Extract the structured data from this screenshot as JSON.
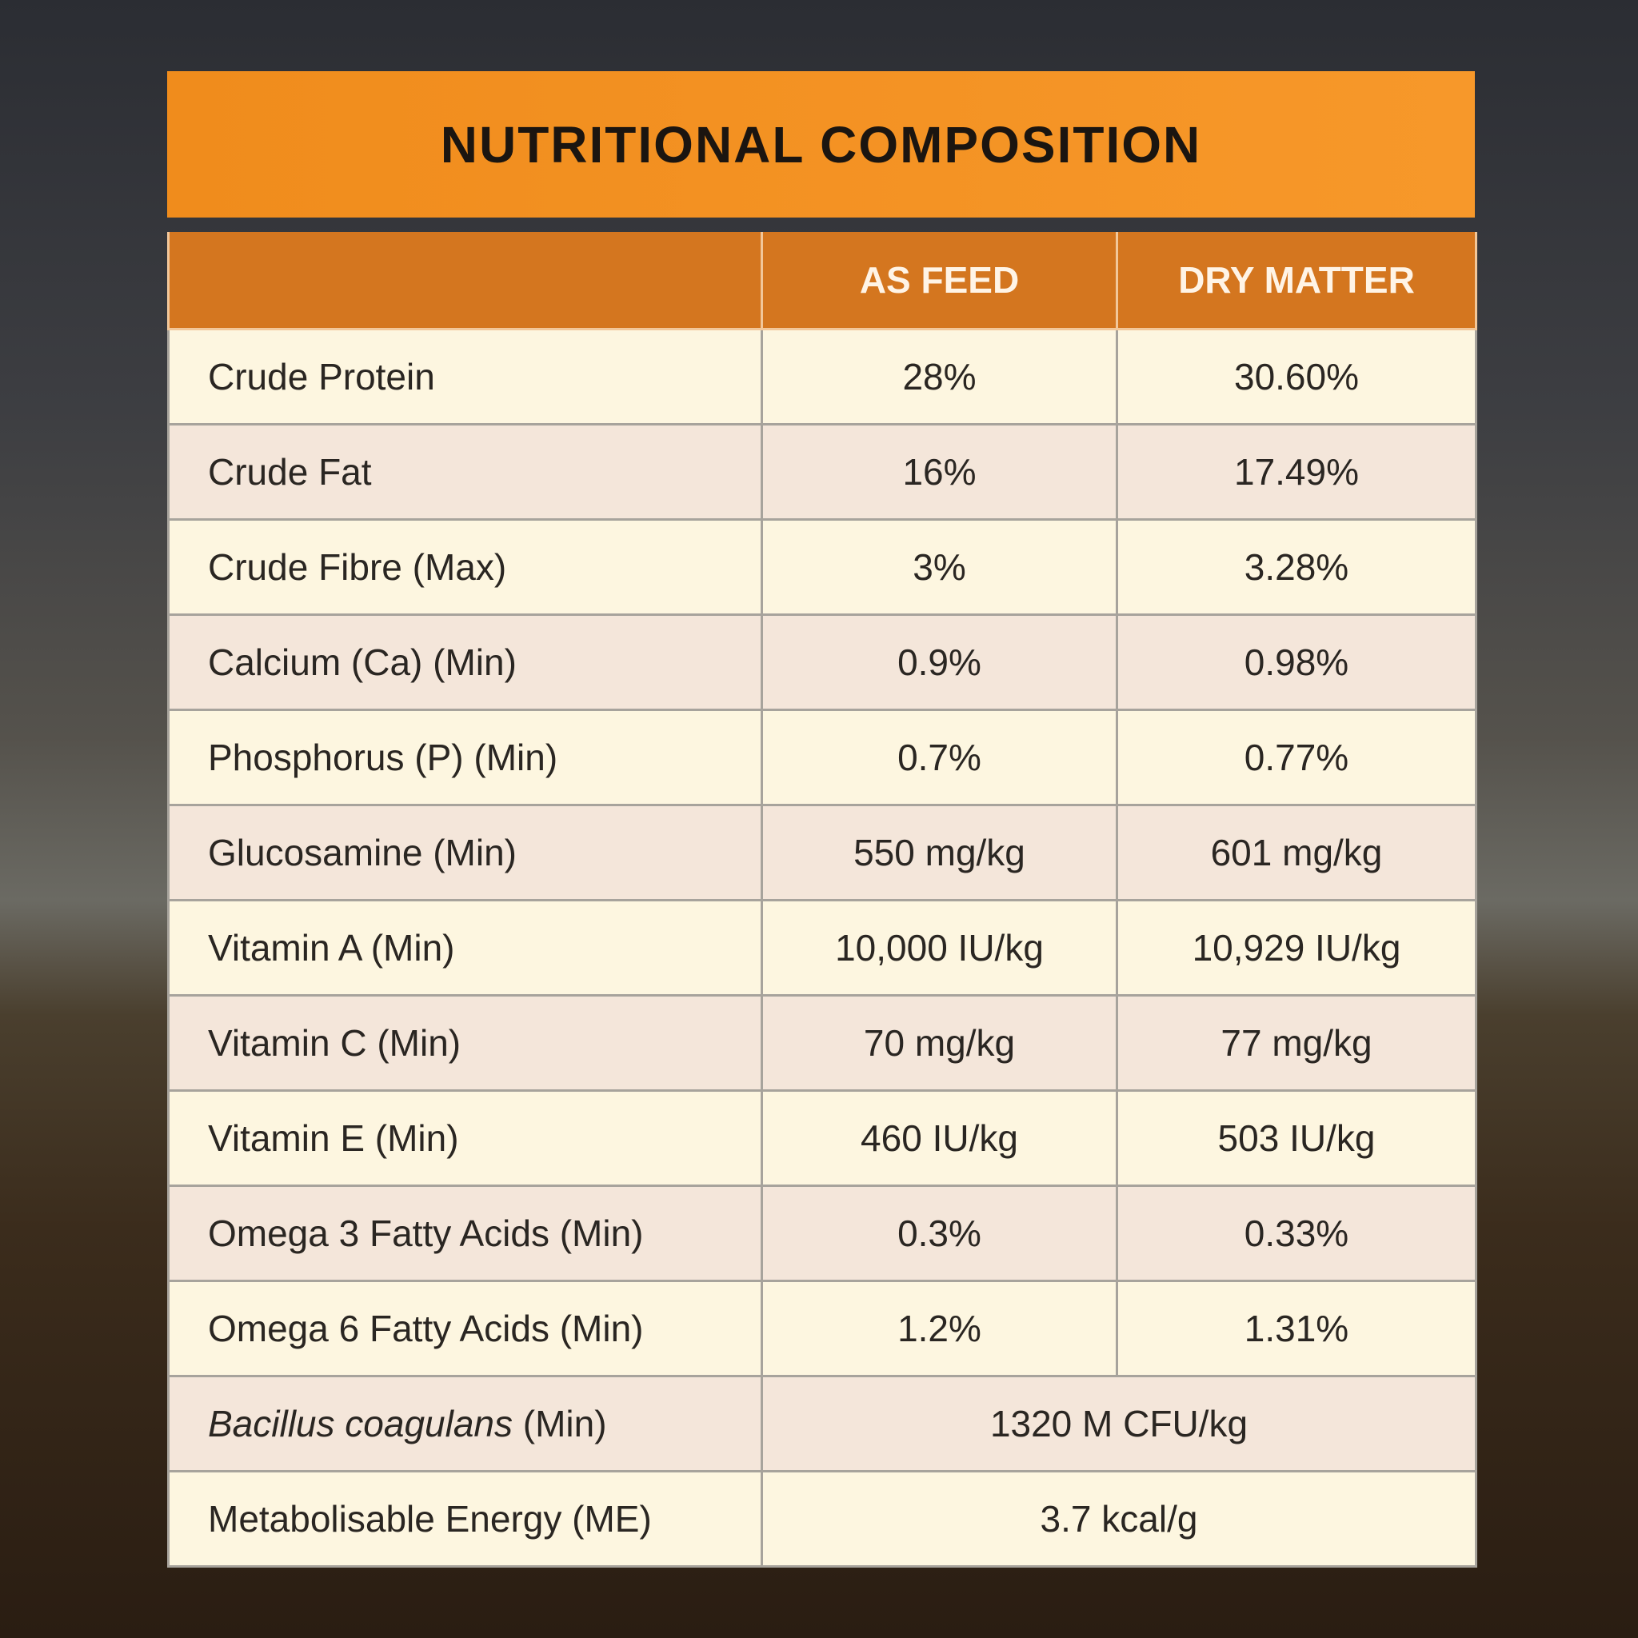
{
  "header": {
    "title": "NUTRITIONAL COMPOSITION"
  },
  "table": {
    "columns": [
      "AS FEED",
      "DRY MATTER"
    ],
    "rows": [
      {
        "name": "Crude Protein",
        "as_feed": "28%",
        "dry_matter": "30.60%"
      },
      {
        "name": "Crude Fat",
        "as_feed": "16%",
        "dry_matter": "17.49%"
      },
      {
        "name": "Crude Fibre (Max)",
        "as_feed": "3%",
        "dry_matter": "3.28%"
      },
      {
        "name": "Calcium (Ca) (Min)",
        "as_feed": "0.9%",
        "dry_matter": "0.98%"
      },
      {
        "name": "Phosphorus (P) (Min)",
        "as_feed": "0.7%",
        "dry_matter": "0.77%"
      },
      {
        "name": "Glucosamine (Min)",
        "as_feed": "550 mg/kg",
        "dry_matter": "601 mg/kg"
      },
      {
        "name": "Vitamin A (Min)",
        "as_feed": "10,000 IU/kg",
        "dry_matter": "10,929 IU/kg"
      },
      {
        "name": "Vitamin C (Min)",
        "as_feed": "70 mg/kg",
        "dry_matter": "77 mg/kg"
      },
      {
        "name": "Vitamin E (Min)",
        "as_feed": "460 IU/kg",
        "dry_matter": "503 IU/kg"
      },
      {
        "name": "Omega 3 Fatty Acids (Min)",
        "as_feed": "0.3%",
        "dry_matter": "0.33%"
      },
      {
        "name": "Omega 6 Fatty Acids (Min)",
        "as_feed": "1.2%",
        "dry_matter": "1.31%"
      },
      {
        "name_italic": "Bacillus coagulans",
        "name": "(Min)",
        "value": "1320 M CFU/kg"
      },
      {
        "name": "Metabolisable Energy (ME)",
        "value": "3.7 kcal/g"
      }
    ]
  }
}
